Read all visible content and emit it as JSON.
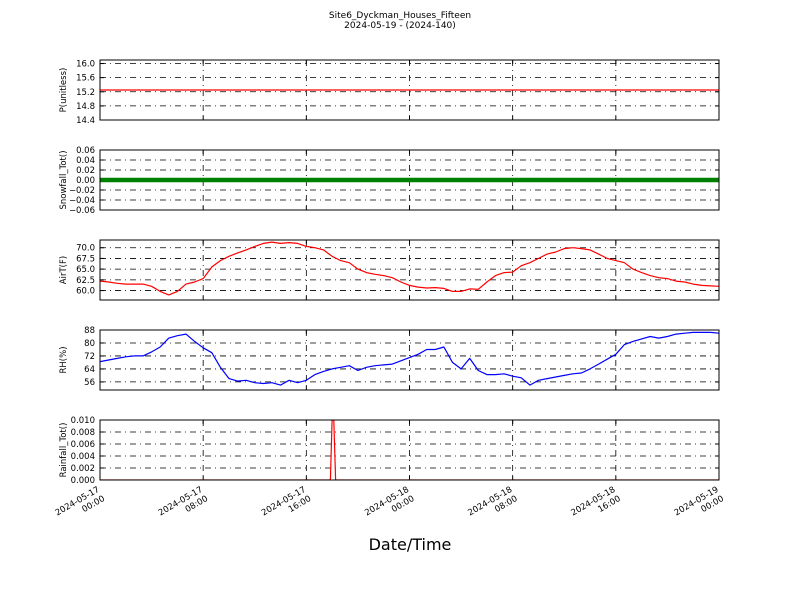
{
  "figure": {
    "title": "Site6_Dyckman_Houses_Fifteen",
    "subtitle": "2024-05-19 - (2024-140)",
    "xlabel": "Date/Time"
  },
  "chart_data": [
    {
      "type": "line",
      "ylabel": "P(unitless)",
      "ylim": [
        14.4,
        16.1
      ],
      "yticks": [
        "14.4",
        "14.8",
        "15.2",
        "15.6",
        "16.0"
      ],
      "ytick_values": [
        14.4,
        14.8,
        15.2,
        15.6,
        16.0
      ],
      "color": "#ff0000",
      "marker": "none",
      "grid": true,
      "x": [
        0,
        72
      ],
      "y": [
        15.25,
        15.25
      ]
    },
    {
      "type": "line",
      "ylabel": "Snowfall_Tot()",
      "ylim": [
        -0.06,
        0.06
      ],
      "yticks": [
        "−0.06",
        "−0.04",
        "−0.02",
        "0.00",
        "0.02",
        "0.04",
        "0.06"
      ],
      "ytick_values": [
        -0.06,
        -0.04,
        -0.02,
        0.0,
        0.02,
        0.04,
        0.06
      ],
      "color": "#008000",
      "marker": "dots",
      "grid": true,
      "x": [
        0,
        72
      ],
      "y": [
        0,
        0
      ]
    },
    {
      "type": "line",
      "ylabel": "AirT(F)",
      "ylim": [
        57.8,
        71.8
      ],
      "yticks": [
        "60.0",
        "62.5",
        "65.0",
        "67.5",
        "70.0"
      ],
      "ytick_values": [
        60.0,
        62.5,
        65.0,
        67.5,
        70.0
      ],
      "color": "#ff0000",
      "marker": "none",
      "grid": true,
      "x": [
        0,
        1,
        2,
        3,
        4,
        5,
        6,
        7,
        8,
        9,
        10,
        11,
        12,
        13,
        14,
        15,
        16,
        17,
        18,
        19,
        20,
        21,
        22,
        23,
        24,
        25,
        26,
        27,
        28,
        29,
        30,
        31,
        32,
        33,
        34,
        35,
        36,
        37,
        38,
        39,
        40,
        41,
        42,
        43,
        44,
        45,
        46,
        47,
        48,
        49,
        50,
        51,
        52,
        53,
        54,
        55,
        56,
        57,
        58,
        59,
        60,
        61,
        62,
        63,
        64,
        65,
        66,
        67,
        68,
        69,
        70,
        71,
        72
      ],
      "y": [
        62.2,
        62.0,
        61.7,
        61.5,
        61.5,
        61.5,
        61.0,
        59.8,
        59.0,
        59.8,
        61.5,
        62.0,
        62.8,
        65.5,
        67.0,
        68.0,
        68.8,
        69.5,
        70.3,
        71.0,
        71.3,
        71.0,
        71.2,
        71.0,
        70.3,
        70.0,
        69.5,
        68.0,
        67.0,
        66.5,
        65.0,
        64.2,
        63.8,
        63.5,
        63.0,
        62.0,
        61.2,
        60.8,
        60.6,
        60.7,
        60.5,
        59.8,
        59.8,
        60.4,
        60.3,
        62.0,
        63.5,
        64.2,
        64.3,
        65.8,
        66.5,
        67.5,
        68.5,
        69.0,
        69.8,
        70.0,
        69.8,
        69.5,
        68.5,
        67.5,
        67.0,
        66.5,
        65.0,
        64.2,
        63.5,
        63.0,
        62.8,
        62.2,
        62.0,
        61.5,
        61.2,
        61.1,
        61.0
      ]
    },
    {
      "type": "line",
      "ylabel": "RH(%)",
      "ylim": [
        51,
        88
      ],
      "yticks": [
        "56",
        "64",
        "72",
        "80",
        "88"
      ],
      "ytick_values": [
        56,
        64,
        72,
        80,
        88
      ],
      "color": "#0000ff",
      "marker": "none",
      "grid": true,
      "x": [
        0,
        1,
        2,
        3,
        4,
        5,
        6,
        7,
        8,
        9,
        10,
        11,
        12,
        13,
        14,
        15,
        16,
        17,
        18,
        19,
        20,
        21,
        22,
        23,
        24,
        25,
        26,
        27,
        28,
        29,
        30,
        31,
        32,
        33,
        34,
        35,
        36,
        37,
        38,
        39,
        40,
        41,
        42,
        43,
        44,
        45,
        46,
        47,
        48,
        49,
        50,
        51,
        52,
        53,
        54,
        55,
        56,
        57,
        58,
        59,
        60,
        61,
        62,
        63,
        64,
        65,
        66,
        67,
        68,
        69,
        70,
        71,
        72
      ],
      "y": [
        68.5,
        69.5,
        70.5,
        71.5,
        72.0,
        72.0,
        74.5,
        77.5,
        83.0,
        84.5,
        85.5,
        81.0,
        77.0,
        74.0,
        65.0,
        58.0,
        56.5,
        57.0,
        55.5,
        55.0,
        55.5,
        54.0,
        57.0,
        55.5,
        57.0,
        60.5,
        62.5,
        64.0,
        65.0,
        66.0,
        63.0,
        65.0,
        66.0,
        66.5,
        67.0,
        69.0,
        71.0,
        73.0,
        76.0,
        76.0,
        77.5,
        68.0,
        64.0,
        70.5,
        63.0,
        60.5,
        60.5,
        61.0,
        59.5,
        58.5,
        54.0,
        57.0,
        58.0,
        59.0,
        60.0,
        61.0,
        61.5,
        64.0,
        67.0,
        70.0,
        73.0,
        79.0,
        81.0,
        82.5,
        84.0,
        83.0,
        84.0,
        85.5,
        86.0,
        86.5,
        86.5,
        86.5,
        86.0
      ]
    },
    {
      "type": "line",
      "ylabel": "Rainfall_Tot()",
      "ylim": [
        0,
        0.01
      ],
      "yticks": [
        "0.000",
        "0.002",
        "0.004",
        "0.006",
        "0.008",
        "0.010"
      ],
      "ytick_values": [
        0,
        0.002,
        0.004,
        0.006,
        0.008,
        0.01
      ],
      "color": "#ff0000",
      "marker": "none",
      "grid": true,
      "x": [
        0,
        26.8,
        27.0,
        27.2,
        27.4,
        72
      ],
      "y": [
        0,
        0,
        0.01,
        0.01,
        0,
        0
      ]
    }
  ],
  "x_axis": {
    "xlim": [
      0,
      72
    ],
    "tick_values": [
      0,
      12,
      24,
      36,
      48,
      60,
      72
    ],
    "tick_labels": [
      "2024-05-17\n00:00",
      "2024-05-17\n08:00",
      "2024-05-17\n16:00",
      "2024-05-18\n00:00",
      "2024-05-18\n08:00",
      "2024-05-18\n16:00",
      "2024-05-19\n00:00"
    ]
  }
}
